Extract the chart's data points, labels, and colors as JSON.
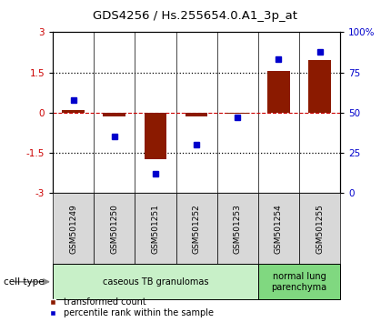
{
  "title": "GDS4256 / Hs.255654.0.A1_3p_at",
  "samples": [
    "GSM501249",
    "GSM501250",
    "GSM501251",
    "GSM501252",
    "GSM501253",
    "GSM501254",
    "GSM501255"
  ],
  "transformed_count": [
    0.1,
    -0.15,
    -1.72,
    -0.15,
    -0.05,
    1.55,
    1.95
  ],
  "percentile_rank": [
    58,
    35,
    12,
    30,
    47,
    83,
    88
  ],
  "groups": [
    {
      "label": "caseous TB granulomas",
      "start": 0,
      "end": 5,
      "color": "#c8f0c8"
    },
    {
      "label": "normal lung\nparenchyma",
      "start": 5,
      "end": 7,
      "color": "#80d880"
    }
  ],
  "bar_color": "#8B1A00",
  "dot_color": "#0000cc",
  "dashed_line_color": "#cc0000",
  "ylim_left": [
    -3,
    3
  ],
  "ylim_right": [
    0,
    100
  ],
  "yticks_left": [
    -3,
    -1.5,
    0,
    1.5,
    3
  ],
  "ytick_labels_left": [
    "-3",
    "-1.5",
    "0",
    "1.5",
    "3"
  ],
  "yticks_right": [
    0,
    25,
    50,
    75,
    100
  ],
  "ytick_labels_right": [
    "0",
    "25",
    "50",
    "75",
    "100%"
  ],
  "dotted_lines": [
    -1.5,
    1.5
  ],
  "legend_red_label": "transformed count",
  "legend_blue_label": "percentile rank within the sample",
  "cell_type_label": "cell type",
  "background_color": "#ffffff",
  "bar_width": 0.55
}
